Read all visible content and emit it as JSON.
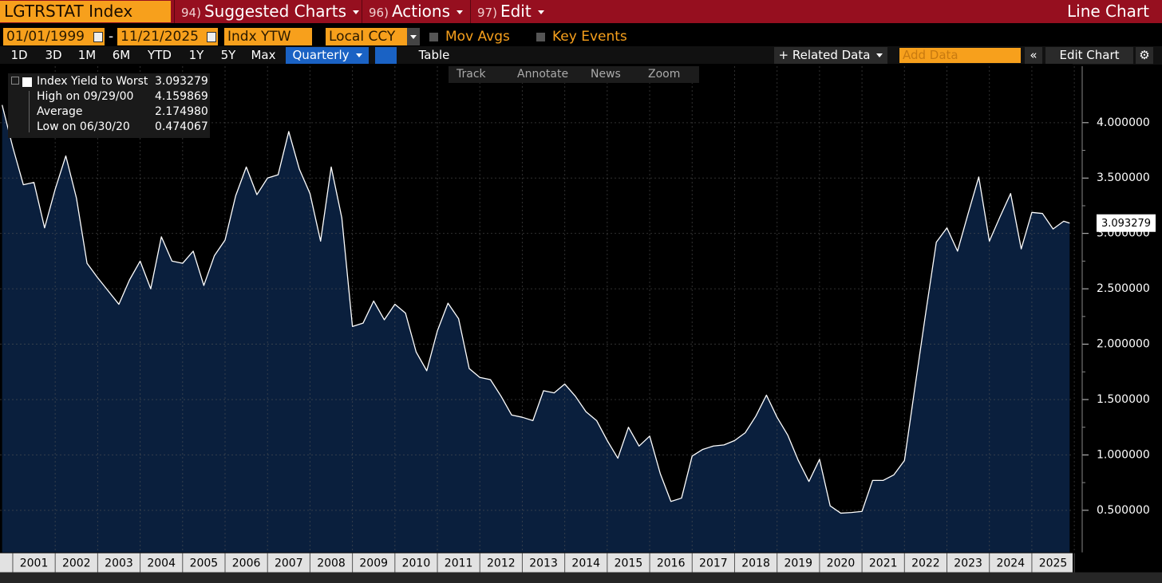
{
  "header": {
    "ticker": "LGTRSTAT Index",
    "menus": [
      {
        "num": "94)",
        "label": "Suggested Charts"
      },
      {
        "num": "96)",
        "label": "Actions"
      },
      {
        "num": "97)",
        "label": "Edit"
      }
    ],
    "view": "Line Chart"
  },
  "controls": {
    "start_date": "01/01/1999",
    "separator": "-",
    "end_date": "11/21/2025",
    "field": "Indx YTW",
    "currency": "Local CCY",
    "mov_avgs": "Mov Avgs",
    "key_events": "Key Events"
  },
  "toolbar": {
    "periods": [
      "1D",
      "3D",
      "1M",
      "6M",
      "YTD",
      "1Y",
      "5Y",
      "Max"
    ],
    "frequency": "Quarterly",
    "table": "Table",
    "related_data": "Related Data",
    "add_data": "Add Data",
    "edit_chart": "Edit Chart"
  },
  "chart_tools": [
    "Track",
    "Annotate",
    "News",
    "Zoom"
  ],
  "chart_data": {
    "type": "line",
    "last_value": "3.093279",
    "legend_stats": [
      {
        "label": "High on 09/29/00",
        "value": "4.159869"
      },
      {
        "label": "Average",
        "value": "2.174980"
      },
      {
        "label": "Low on 06/30/20",
        "value": "0.474067"
      }
    ],
    "x": [
      2000.75,
      2001,
      2001.25,
      2001.5,
      2001.75,
      2002,
      2002.25,
      2002.5,
      2002.75,
      2003,
      2003.25,
      2003.5,
      2003.75,
      2004,
      2004.25,
      2004.5,
      2004.75,
      2005,
      2005.25,
      2005.5,
      2005.75,
      2006,
      2006.25,
      2006.5,
      2006.75,
      2007,
      2007.25,
      2007.5,
      2007.75,
      2008,
      2008.25,
      2008.5,
      2008.75,
      2009,
      2009.25,
      2009.5,
      2009.75,
      2010,
      2010.25,
      2010.5,
      2010.75,
      2011,
      2011.25,
      2011.5,
      2011.75,
      2012,
      2012.25,
      2012.5,
      2012.75,
      2013,
      2013.25,
      2013.5,
      2013.75,
      2014,
      2014.25,
      2014.5,
      2014.75,
      2015,
      2015.25,
      2015.5,
      2015.75,
      2016,
      2016.25,
      2016.5,
      2016.75,
      2017,
      2017.25,
      2017.5,
      2017.75,
      2018,
      2018.25,
      2018.5,
      2018.75,
      2019,
      2019.25,
      2019.5,
      2019.75,
      2020,
      2020.25,
      2020.5,
      2020.75,
      2021,
      2021.25,
      2021.5,
      2021.75,
      2022,
      2022.25,
      2022.5,
      2022.75,
      2023,
      2023.25,
      2023.5,
      2023.75,
      2024,
      2024.25,
      2024.5,
      2024.75,
      2025,
      2025.25,
      2025.5,
      2025.75,
      2025.89
    ],
    "series": [
      {
        "name": "Index Yield to Worst",
        "color": "#ffffff",
        "fill": "#0a1f3d",
        "values": [
          4.159869,
          3.78,
          3.44,
          3.46,
          3.05,
          3.4,
          3.7,
          3.32,
          2.73,
          2.6,
          2.48,
          2.36,
          2.58,
          2.75,
          2.5,
          2.97,
          2.75,
          2.73,
          2.84,
          2.53,
          2.8,
          2.94,
          3.34,
          3.6,
          3.35,
          3.5,
          3.53,
          3.92,
          3.58,
          3.36,
          2.93,
          3.6,
          3.14,
          2.16,
          2.19,
          2.39,
          2.22,
          2.36,
          2.28,
          1.93,
          1.76,
          2.12,
          2.37,
          2.23,
          1.78,
          1.7,
          1.68,
          1.53,
          1.36,
          1.34,
          1.31,
          1.58,
          1.56,
          1.64,
          1.53,
          1.39,
          1.31,
          1.13,
          0.97,
          1.25,
          1.08,
          1.17,
          0.83,
          0.58,
          0.61,
          0.99,
          1.05,
          1.08,
          1.09,
          1.13,
          1.2,
          1.35,
          1.54,
          1.34,
          1.18,
          0.95,
          0.76,
          0.96,
          0.54,
          0.474067,
          0.48,
          0.49,
          0.77,
          0.77,
          0.82,
          0.95,
          1.62,
          2.28,
          2.92,
          3.05,
          2.84,
          3.18,
          3.51,
          2.93,
          3.15,
          3.36,
          2.86,
          3.19,
          3.18,
          3.04,
          3.11,
          3.093279
        ]
      }
    ],
    "xlim": [
      2000.7,
      2025.96
    ],
    "xticks": [
      {
        "value": 2001.5,
        "label": "2001"
      },
      {
        "value": 2002.5,
        "label": "2002"
      },
      {
        "value": 2003.5,
        "label": "2003"
      },
      {
        "value": 2004.5,
        "label": "2004"
      },
      {
        "value": 2005.5,
        "label": "2005"
      },
      {
        "value": 2006.5,
        "label": "2006"
      },
      {
        "value": 2007.5,
        "label": "2007"
      },
      {
        "value": 2008.5,
        "label": "2008"
      },
      {
        "value": 2009.5,
        "label": "2009"
      },
      {
        "value": 2010.5,
        "label": "2010"
      },
      {
        "value": 2011.5,
        "label": "2011"
      },
      {
        "value": 2012.5,
        "label": "2012"
      },
      {
        "value": 2013.5,
        "label": "2013"
      },
      {
        "value": 2014.5,
        "label": "2014"
      },
      {
        "value": 2015.5,
        "label": "2015"
      },
      {
        "value": 2016.5,
        "label": "2016"
      },
      {
        "value": 2017.5,
        "label": "2017"
      },
      {
        "value": 2018.5,
        "label": "2018"
      },
      {
        "value": 2019.5,
        "label": "2019"
      },
      {
        "value": 2020.5,
        "label": "2020"
      },
      {
        "value": 2021.5,
        "label": "2021"
      },
      {
        "value": 2022.5,
        "label": "2022"
      },
      {
        "value": 2023.5,
        "label": "2023"
      },
      {
        "value": 2024.5,
        "label": "2024"
      },
      {
        "value": 2025.5,
        "label": "2025"
      }
    ],
    "ylim": [
      0.12,
      4.51
    ],
    "yticks": [
      {
        "value": 0.5,
        "label": "0.500000"
      },
      {
        "value": 1,
        "label": "1.000000"
      },
      {
        "value": 1.5,
        "label": "1.500000"
      },
      {
        "value": 2,
        "label": "2.000000"
      },
      {
        "value": 2.5,
        "label": "2.500000"
      },
      {
        "value": 3,
        "label": "3.000000"
      },
      {
        "value": 3.5,
        "label": "3.500000"
      },
      {
        "value": 4,
        "label": "4.000000"
      }
    ],
    "grid": true
  }
}
